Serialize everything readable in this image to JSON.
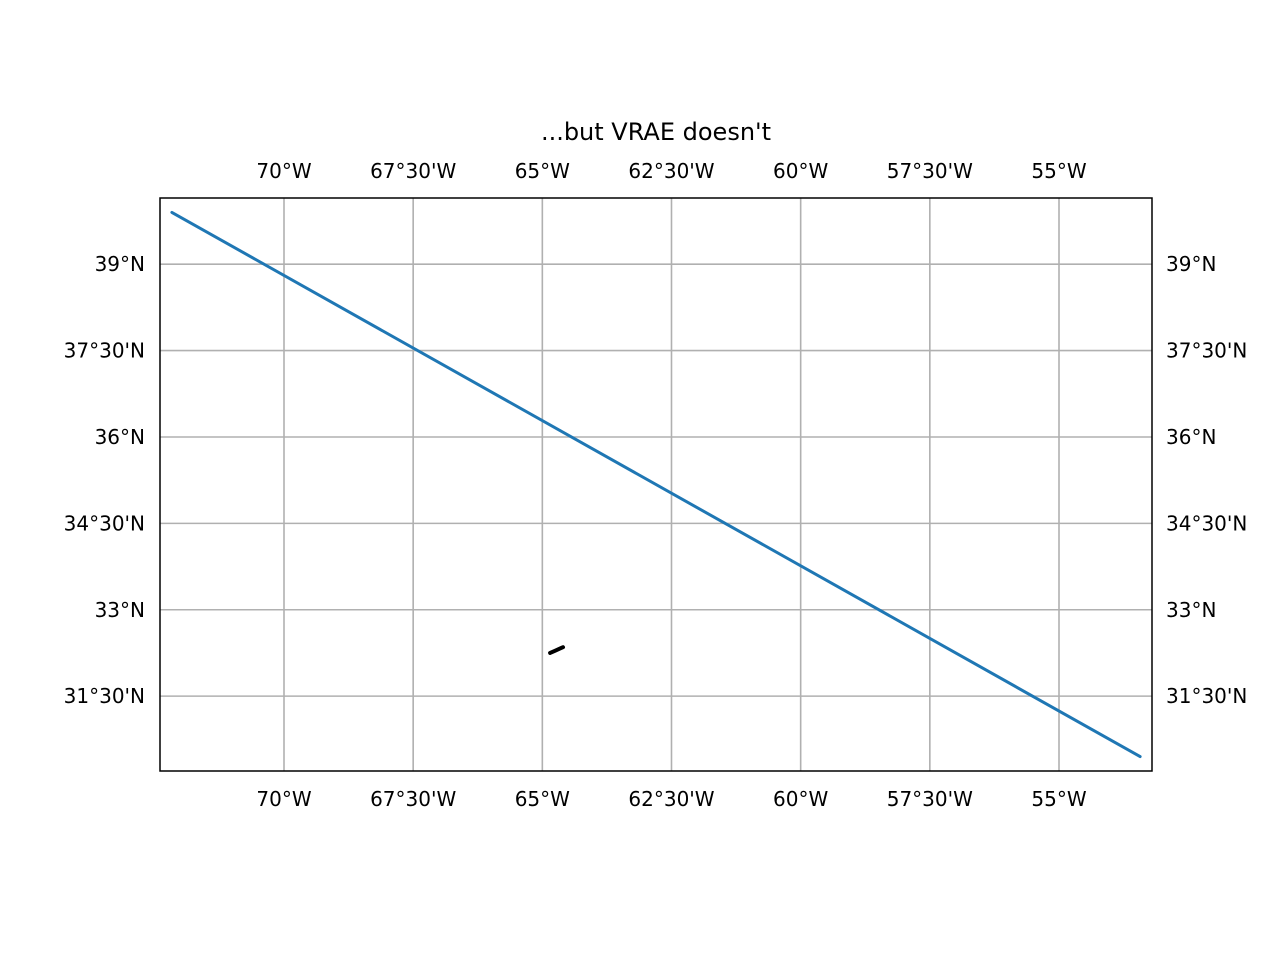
{
  "title": "...but VRAE doesn't",
  "chart_data": {
    "type": "map",
    "title": "...but VRAE doesn't",
    "xlim": [
      -72.4,
      -53.2
    ],
    "ylim": [
      30.2,
      40.15
    ],
    "x_ticks": [
      {
        "value": -70,
        "label": "70°W"
      },
      {
        "value": -67.5,
        "label": "67°30'W"
      },
      {
        "value": -65,
        "label": "65°W"
      },
      {
        "value": -62.5,
        "label": "62°30'W"
      },
      {
        "value": -60,
        "label": "60°W"
      },
      {
        "value": -57.5,
        "label": "57°30'W"
      },
      {
        "value": -55,
        "label": "55°W"
      }
    ],
    "y_ticks": [
      {
        "value": 39,
        "label": "39°N"
      },
      {
        "value": 37.5,
        "label": "37°30'N"
      },
      {
        "value": 36,
        "label": "36°N"
      },
      {
        "value": 34.5,
        "label": "34°30'N"
      },
      {
        "value": 33,
        "label": "33°N"
      },
      {
        "value": 31.5,
        "label": "31°30'N"
      }
    ],
    "grid": true,
    "series": [
      {
        "color": "#1f77b4",
        "x": [
          -72.17,
          -53.43
        ],
        "y": [
          39.9,
          30.45
        ]
      }
    ],
    "land": {
      "color": "#000000",
      "x": [
        -64.85,
        -64.75,
        -64.65,
        -64.6
      ],
      "y": [
        32.25,
        32.29,
        32.33,
        32.35
      ]
    }
  }
}
